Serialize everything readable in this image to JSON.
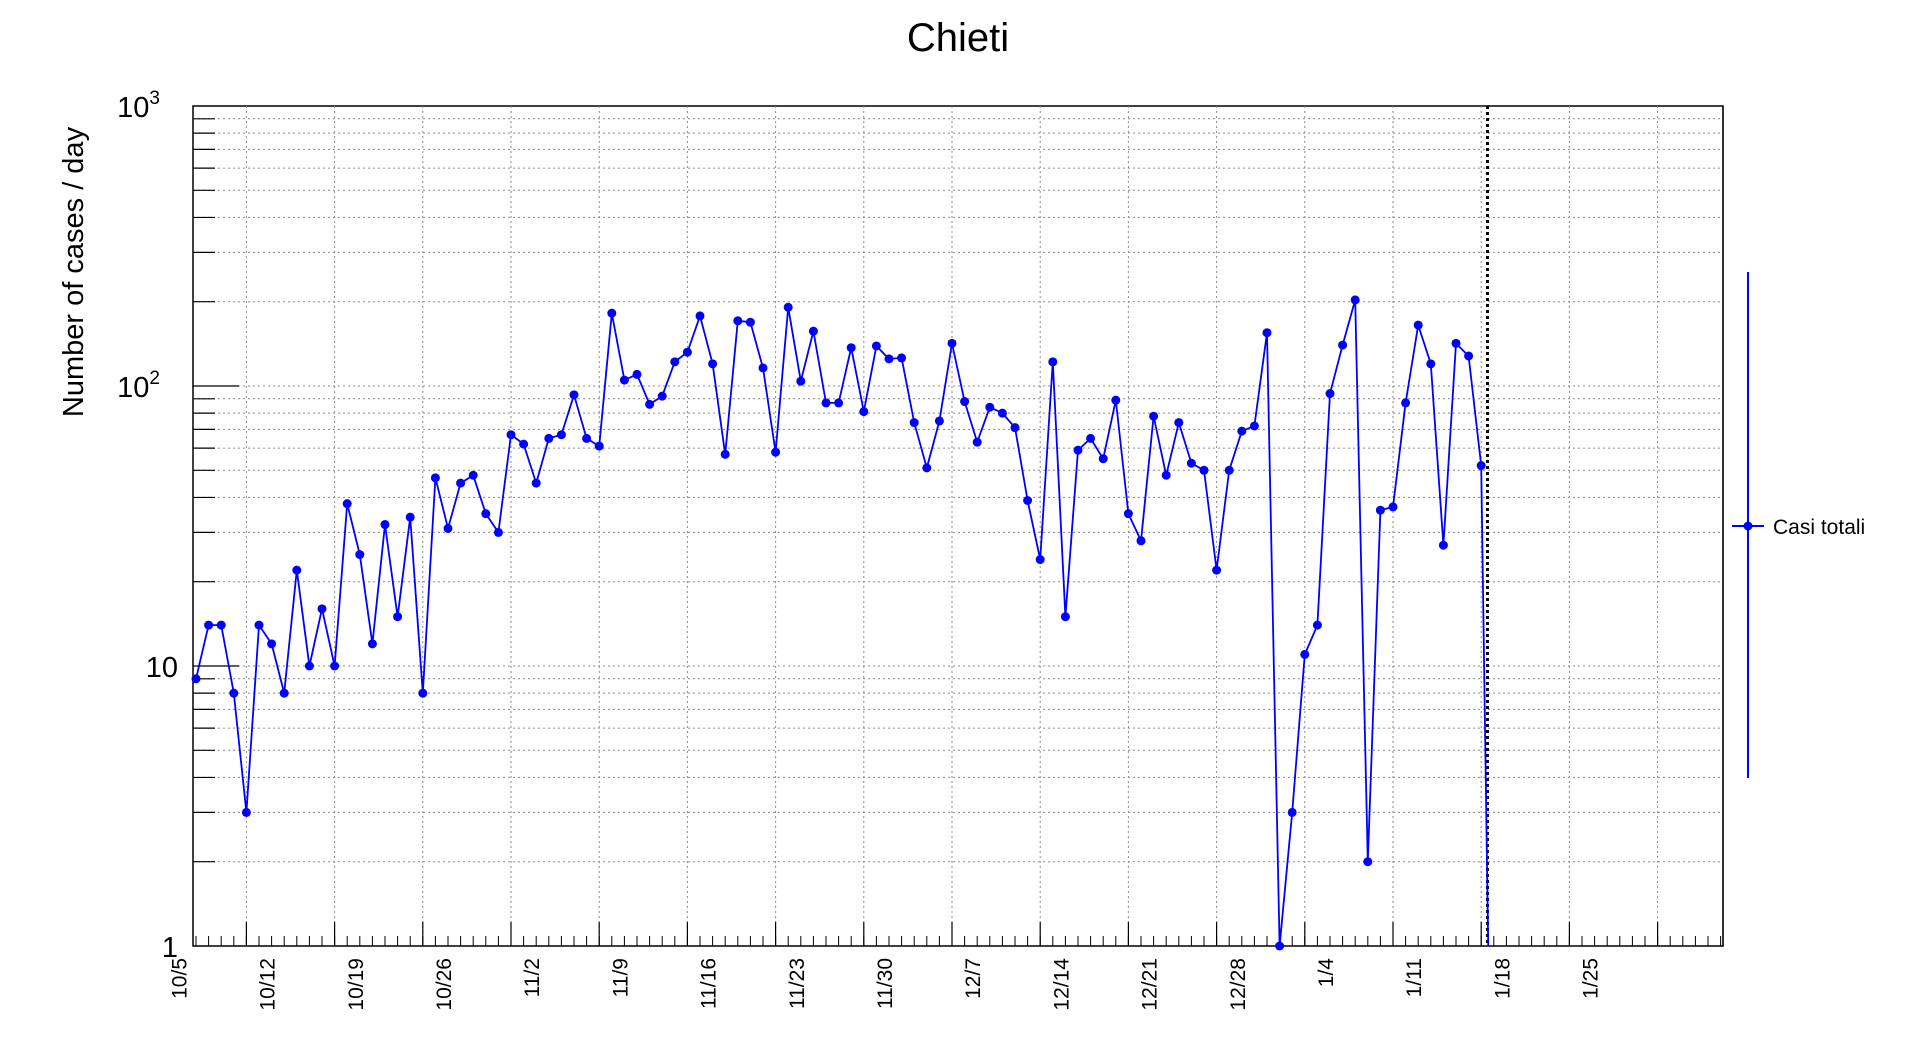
{
  "chart_data": {
    "type": "line",
    "title": "Chieti",
    "ylabel": "Number of cases / day",
    "xlabel": "",
    "y_scale": "log",
    "ylim": [
      1,
      1000
    ],
    "y_ticks": [
      {
        "value": 1,
        "label": "1"
      },
      {
        "value": 10,
        "label": "10"
      },
      {
        "value": 100,
        "label": "10",
        "exp": "2"
      },
      {
        "value": 1000,
        "label": "10",
        "exp": "3"
      }
    ],
    "x_start_date": "2020-10-01",
    "x_range_days": [
      0,
      122
    ],
    "x_ticks": [
      {
        "label": "10/5",
        "day": 4
      },
      {
        "label": "10/12",
        "day": 11
      },
      {
        "label": "10/19",
        "day": 18
      },
      {
        "label": "10/26",
        "day": 25
      },
      {
        "label": "11/2",
        "day": 32
      },
      {
        "label": "11/9",
        "day": 39
      },
      {
        "label": "11/16",
        "day": 46
      },
      {
        "label": "11/23",
        "day": 53
      },
      {
        "label": "11/30",
        "day": 60
      },
      {
        "label": "12/7",
        "day": 67
      },
      {
        "label": "12/14",
        "day": 74
      },
      {
        "label": "12/21",
        "day": 81
      },
      {
        "label": "12/28",
        "day": 88
      },
      {
        "label": "1/4",
        "day": 95
      },
      {
        "label": "1/11",
        "day": 102
      },
      {
        "label": "1/18",
        "day": 109
      },
      {
        "label": "1/25",
        "day": 116
      }
    ],
    "marker_line_day": 102.5,
    "grid": true,
    "legend_position": "right",
    "color": "#0000ff",
    "series": [
      {
        "name": "Casi totali",
        "x_days": [
          0,
          1,
          2,
          3,
          4,
          5,
          6,
          7,
          8,
          9,
          10,
          11,
          12,
          13,
          14,
          15,
          16,
          17,
          18,
          19,
          20,
          21,
          22,
          23,
          24,
          25,
          26,
          27,
          28,
          29,
          30,
          31,
          32,
          33,
          34,
          35,
          36,
          37,
          38,
          39,
          40,
          41,
          42,
          43,
          44,
          45,
          46,
          47,
          48,
          49,
          50,
          51,
          52,
          53,
          54,
          55,
          56,
          57,
          58,
          59,
          60,
          61,
          62,
          63,
          64,
          65,
          66,
          67,
          68,
          69,
          70,
          71,
          72,
          73,
          74,
          75,
          76,
          77,
          78,
          79,
          80,
          81,
          82,
          83,
          84,
          85,
          86,
          87,
          88,
          89,
          90,
          91,
          92,
          93,
          94,
          95,
          96,
          97,
          98,
          99,
          100,
          101,
          102
        ],
        "values": [
          9,
          14,
          14,
          8,
          3,
          14,
          12,
          8,
          22,
          10,
          16,
          10,
          38,
          25,
          12,
          32,
          15,
          34,
          8,
          47,
          31,
          45,
          48,
          35,
          30,
          67,
          62,
          45,
          65,
          67,
          93,
          65,
          61,
          182,
          105,
          110,
          86,
          92,
          122,
          132,
          178,
          120,
          57,
          171,
          169,
          116,
          58,
          191,
          104,
          157,
          87,
          87,
          137,
          81,
          139,
          125,
          126,
          74,
          51,
          75,
          142,
          88,
          63,
          84,
          80,
          71,
          39,
          24,
          122,
          15,
          59,
          65,
          55,
          89,
          35,
          28,
          78,
          48,
          74,
          53,
          50,
          22,
          50,
          69,
          72,
          155,
          1,
          3,
          11,
          14,
          94,
          140,
          203,
          2,
          36,
          37,
          87,
          165,
          120,
          27,
          142,
          128,
          52
        ]
      }
    ]
  }
}
